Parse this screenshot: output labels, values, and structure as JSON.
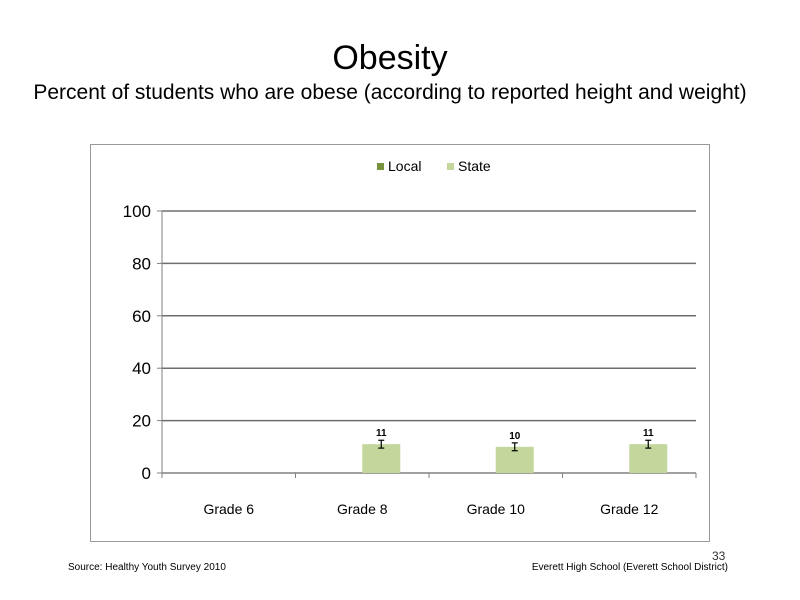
{
  "slide": {
    "title": "Obesity",
    "subtitle": "Percent of students who are obese (according to reported height and weight)",
    "source": "Source: Healthy Youth Survey 2010",
    "school": "Everett High School (Everett School District)",
    "page_number": "33"
  },
  "chart_data": {
    "type": "bar",
    "title": "Obesity",
    "subtitle": "Percent of students who are obese (according to reported height and weight)",
    "categories": [
      "Grade 6",
      "Grade 8",
      "Grade 10",
      "Grade 12"
    ],
    "series": [
      {
        "name": "Local",
        "color": "#77933C",
        "values": [
          null,
          null,
          null,
          null
        ]
      },
      {
        "name": "State",
        "color": "#C3D69B",
        "values": [
          null,
          11,
          10,
          11
        ],
        "labels": [
          "",
          "11",
          "10",
          "11"
        ],
        "error_low": [
          null,
          9.5,
          8.5,
          9.5
        ],
        "error_high": [
          null,
          12.5,
          11.5,
          12.5
        ]
      }
    ],
    "ylim": [
      0,
      100
    ],
    "yticks": [
      0,
      20,
      40,
      60,
      80,
      100
    ],
    "grid": true,
    "legend": "top",
    "xlabel": "",
    "ylabel": ""
  }
}
